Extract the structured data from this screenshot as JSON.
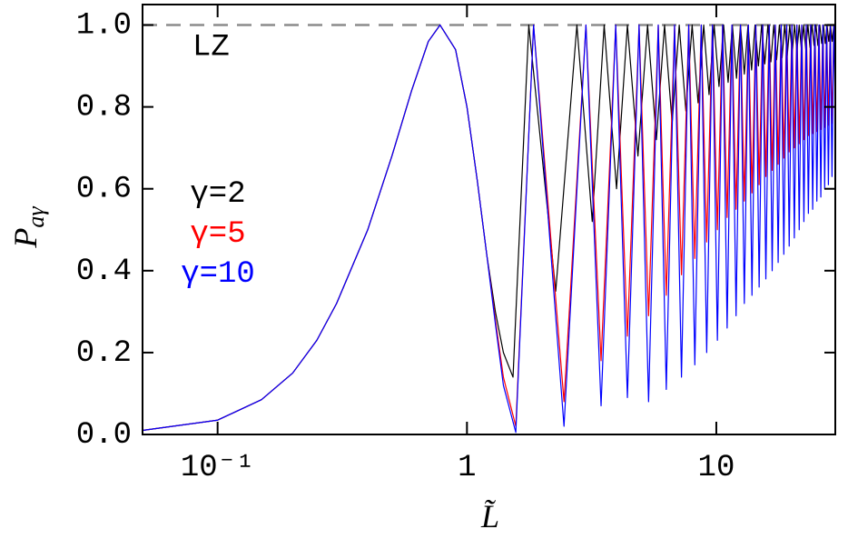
{
  "chart_data": {
    "type": "line",
    "ylabel": {
      "symbol": "P",
      "subscript": "aγ"
    },
    "xlabel": "L̃",
    "xscale": "log",
    "xlim": [
      0.05,
      30
    ],
    "ylim": [
      0,
      1.05
    ],
    "xticks": [
      {
        "value": 0.1,
        "label": "10⁻¹"
      },
      1,
      10
    ],
    "yticks": [
      {
        "value": 0,
        "label": "0.0"
      },
      0.2,
      0.4,
      0.6,
      0.8,
      {
        "value": 1,
        "label": "1.0"
      }
    ],
    "grid": false,
    "legend_position": "left",
    "reference_line": {
      "value": 1,
      "label": "LZ",
      "color": "#8c8c8c"
    },
    "series": [
      {
        "name": "γ=2",
        "color": "#000000",
        "x": [
          0.05,
          0.1,
          0.15,
          0.2,
          0.25,
          0.3,
          0.4,
          0.5,
          0.6,
          0.7,
          0.78,
          0.9,
          1.0,
          1.1,
          1.2,
          1.3,
          1.4,
          1.53,
          1.77,
          2.27,
          2.76,
          3.18,
          3.55,
          3.98,
          4.4,
          4.85,
          5.3,
          5.75,
          6.2,
          6.65,
          7.1,
          7.55,
          8.0,
          8.45,
          8.9,
          9.35,
          9.8,
          10.25,
          10.7,
          11.15,
          11.6,
          12.05,
          12.5,
          12.95,
          13.4,
          13.85,
          14.3,
          14.75,
          15.2,
          15.65,
          16.1,
          16.55,
          17.0,
          17.45,
          17.9,
          18.35,
          18.8,
          19.25,
          19.7,
          20.15,
          20.6,
          21.05,
          21.5,
          21.95,
          22.4,
          22.85,
          23.3,
          23.75,
          24.2,
          24.65,
          25.1,
          25.55,
          26.0,
          26.45,
          26.9,
          27.35,
          27.8,
          28.25,
          28.7,
          29.15,
          29.6,
          30
        ],
        "values": [
          0.01,
          0.035,
          0.085,
          0.15,
          0.23,
          0.32,
          0.5,
          0.68,
          0.84,
          0.96,
          1.0,
          0.94,
          0.8,
          0.62,
          0.44,
          0.3,
          0.2,
          0.14,
          1.0,
          0.35,
          1.0,
          0.52,
          1.0,
          0.6,
          1.0,
          0.68,
          1.0,
          0.72,
          1.0,
          0.76,
          1.0,
          0.79,
          1.0,
          0.81,
          1.0,
          0.83,
          1.0,
          0.85,
          1.0,
          0.86,
          1.0,
          0.87,
          1.0,
          0.88,
          1.0,
          0.89,
          1.0,
          0.9,
          1.0,
          0.905,
          1.0,
          0.91,
          1.0,
          0.915,
          1.0,
          0.92,
          1.0,
          0.925,
          1.0,
          0.93,
          1.0,
          0.935,
          1.0,
          0.94,
          1.0,
          0.94,
          1.0,
          0.945,
          1.0,
          0.95,
          1.0,
          0.95,
          1.0,
          0.955,
          1.0,
          0.955,
          1.0,
          0.96,
          1.0,
          0.96,
          1.0,
          0.97
        ]
      },
      {
        "name": "γ=5",
        "color": "#ff0000",
        "x": [
          0.05,
          0.1,
          0.15,
          0.2,
          0.25,
          0.3,
          0.4,
          0.5,
          0.6,
          0.7,
          0.78,
          0.9,
          1.0,
          1.1,
          1.2,
          1.3,
          1.4,
          1.57,
          1.85,
          2.45,
          3.0,
          3.45,
          3.95,
          4.4,
          4.9,
          5.35,
          5.85,
          6.3,
          6.8,
          7.25,
          7.75,
          8.2,
          8.7,
          9.15,
          9.65,
          10.1,
          10.6,
          11.05,
          11.55,
          12.0,
          12.5,
          12.95,
          13.45,
          13.9,
          14.4,
          14.85,
          15.35,
          15.8,
          16.3,
          16.75,
          17.25,
          17.7,
          18.2,
          18.65,
          19.15,
          19.6,
          20.1,
          20.55,
          21.05,
          21.5,
          22.0,
          22.45,
          22.95,
          23.4,
          23.9,
          24.35,
          24.85,
          25.3,
          25.8,
          26.25,
          26.75,
          27.2,
          27.7,
          28.15,
          28.65,
          29.1,
          29.6,
          30
        ],
        "values": [
          0.01,
          0.035,
          0.085,
          0.15,
          0.23,
          0.32,
          0.5,
          0.68,
          0.84,
          0.96,
          1.0,
          0.94,
          0.8,
          0.62,
          0.44,
          0.28,
          0.14,
          0.02,
          1.0,
          0.08,
          1.0,
          0.18,
          1.0,
          0.24,
          1.0,
          0.29,
          1.0,
          0.34,
          1.0,
          0.39,
          1.0,
          0.43,
          1.0,
          0.47,
          1.0,
          0.5,
          1.0,
          0.53,
          1.0,
          0.55,
          1.0,
          0.57,
          1.0,
          0.59,
          1.0,
          0.61,
          1.0,
          0.63,
          1.0,
          0.645,
          1.0,
          0.66,
          1.0,
          0.675,
          1.0,
          0.69,
          1.0,
          0.7,
          1.0,
          0.71,
          1.0,
          0.72,
          1.0,
          0.73,
          1.0,
          0.735,
          1.0,
          0.74,
          1.0,
          0.745,
          1.0,
          0.75,
          1.0,
          0.755,
          1.0,
          0.76,
          1.0,
          0.9
        ]
      },
      {
        "name": "γ=10",
        "color": "#0000ff",
        "x": [
          0.05,
          0.1,
          0.15,
          0.2,
          0.25,
          0.3,
          0.4,
          0.5,
          0.6,
          0.7,
          0.78,
          0.9,
          1.0,
          1.1,
          1.2,
          1.3,
          1.4,
          1.57,
          1.85,
          2.45,
          3.0,
          3.45,
          3.95,
          4.4,
          4.9,
          5.35,
          5.85,
          6.3,
          6.8,
          7.25,
          7.75,
          8.2,
          8.7,
          9.15,
          9.65,
          10.1,
          10.6,
          11.05,
          11.55,
          12.0,
          12.5,
          12.95,
          13.45,
          13.9,
          14.4,
          14.85,
          15.35,
          15.8,
          16.3,
          16.75,
          17.25,
          17.7,
          18.2,
          18.65,
          19.15,
          19.6,
          20.1,
          20.55,
          21.05,
          21.5,
          22.0,
          22.45,
          22.95,
          23.4,
          23.9,
          24.35,
          24.85,
          25.3,
          25.8,
          26.25,
          26.75,
          27.2,
          27.7,
          28.15,
          28.65,
          29.1,
          29.6,
          30
        ],
        "values": [
          0.01,
          0.035,
          0.085,
          0.15,
          0.23,
          0.32,
          0.5,
          0.68,
          0.84,
          0.96,
          1.0,
          0.94,
          0.8,
          0.62,
          0.44,
          0.27,
          0.12,
          0.005,
          1.0,
          0.02,
          1.0,
          0.07,
          1.0,
          0.09,
          1.0,
          0.08,
          1.0,
          0.11,
          1.0,
          0.14,
          1.0,
          0.17,
          1.0,
          0.2,
          1.0,
          0.23,
          1.0,
          0.26,
          1.0,
          0.29,
          1.0,
          0.32,
          1.0,
          0.34,
          1.0,
          0.36,
          1.0,
          0.38,
          1.0,
          0.4,
          1.0,
          0.42,
          1.0,
          0.44,
          1.0,
          0.46,
          1.0,
          0.48,
          1.0,
          0.5,
          1.0,
          0.52,
          1.0,
          0.54,
          1.0,
          0.55,
          1.0,
          0.57,
          1.0,
          0.58,
          1.0,
          0.6,
          1.0,
          0.61,
          1.0,
          0.63,
          1.0,
          0.8
        ]
      }
    ]
  }
}
